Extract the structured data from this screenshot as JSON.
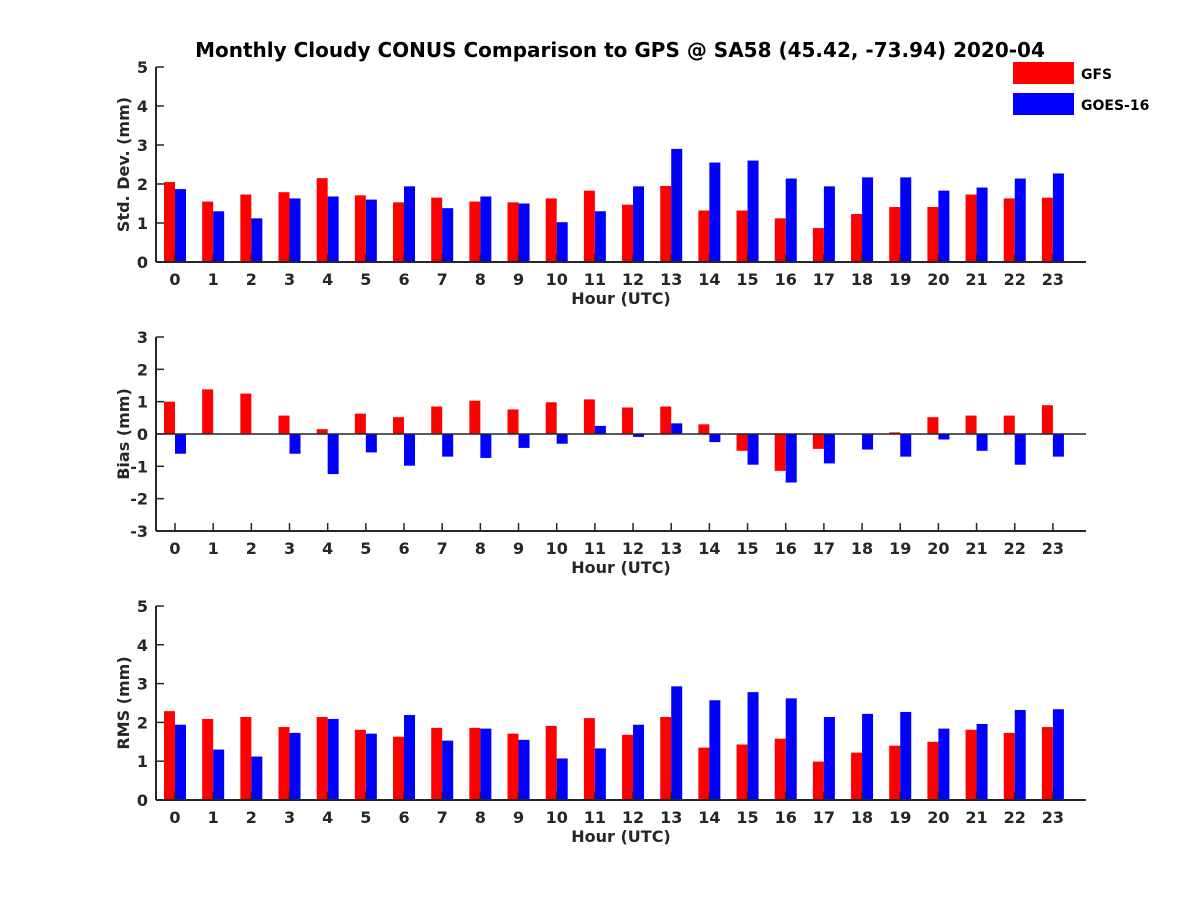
{
  "chart_data": {
    "type": "bar",
    "title": "Monthly Cloudy CONUS Comparison to GPS @ SA58 (45.42, -73.94) 2020-04",
    "legend": {
      "placement": "top-right",
      "entries": [
        {
          "name": "GFS",
          "color": "#ff0000"
        },
        {
          "name": "GOES-16",
          "color": "#0000ff"
        }
      ]
    },
    "panels": [
      {
        "id": "std",
        "ylabel": "Std. Dev. (mm)",
        "xlabel": "Hour (UTC)",
        "ylim": [
          0,
          5
        ],
        "yticks": [
          0,
          1,
          2,
          3,
          4,
          5
        ],
        "categories": [
          "0",
          "1",
          "2",
          "3",
          "4",
          "5",
          "6",
          "7",
          "8",
          "9",
          "10",
          "11",
          "12",
          "13",
          "14",
          "15",
          "16",
          "17",
          "18",
          "19",
          "20",
          "21",
          "22",
          "23"
        ],
        "series": [
          {
            "name": "GFS",
            "color": "#ff0000",
            "values": [
              2.05,
              1.55,
              1.73,
              1.79,
              2.15,
              1.71,
              1.53,
              1.65,
              1.55,
              1.53,
              1.63,
              1.83,
              1.47,
              1.95,
              1.32,
              1.32,
              1.12,
              0.87,
              1.23,
              1.41,
              1.41,
              1.73,
              1.63,
              1.65
            ]
          },
          {
            "name": "GOES-16",
            "color": "#0000ff",
            "values": [
              1.87,
              1.3,
              1.12,
              1.63,
              1.68,
              1.6,
              1.94,
              1.38,
              1.68,
              1.5,
              1.02,
              1.3,
              1.94,
              2.9,
              2.55,
              2.6,
              2.14,
              1.94,
              2.17,
              2.17,
              1.83,
              1.91,
              2.14,
              2.27
            ]
          }
        ]
      },
      {
        "id": "bias",
        "ylabel": "Bias (mm)",
        "xlabel": "Hour (UTC)",
        "ylim": [
          -3,
          3
        ],
        "yticks": [
          -3,
          -2,
          -1,
          0,
          1,
          2,
          3
        ],
        "categories": [
          "0",
          "1",
          "2",
          "3",
          "4",
          "5",
          "6",
          "7",
          "8",
          "9",
          "10",
          "11",
          "12",
          "13",
          "14",
          "15",
          "16",
          "17",
          "18",
          "19",
          "20",
          "21",
          "22",
          "23"
        ],
        "series": [
          {
            "name": "GFS",
            "color": "#ff0000",
            "values": [
              1.0,
              1.38,
              1.25,
              0.57,
              0.15,
              0.63,
              0.52,
              0.85,
              1.03,
              0.76,
              0.98,
              1.07,
              0.82,
              0.85,
              0.3,
              -0.52,
              -1.14,
              -0.46,
              0.0,
              0.05,
              0.52,
              0.57,
              0.57,
              0.89
            ]
          },
          {
            "name": "GOES-16",
            "color": "#0000ff",
            "values": [
              -0.61,
              0.0,
              0.0,
              -0.61,
              -1.24,
              -0.57,
              -0.98,
              -0.7,
              -0.74,
              -0.43,
              -0.3,
              0.25,
              -0.09,
              0.33,
              -0.25,
              -0.95,
              -1.5,
              -0.91,
              -0.48,
              -0.7,
              -0.17,
              -0.52,
              -0.95,
              -0.7
            ]
          }
        ]
      },
      {
        "id": "rms",
        "ylabel": "RMS (mm)",
        "xlabel": "Hour (UTC)",
        "ylim": [
          0,
          5
        ],
        "yticks": [
          0,
          1,
          2,
          3,
          4,
          5
        ],
        "categories": [
          "0",
          "1",
          "2",
          "3",
          "4",
          "5",
          "6",
          "7",
          "8",
          "9",
          "10",
          "11",
          "12",
          "13",
          "14",
          "15",
          "16",
          "17",
          "18",
          "19",
          "20",
          "21",
          "22",
          "23"
        ],
        "series": [
          {
            "name": "GFS",
            "color": "#ff0000",
            "values": [
              2.29,
              2.09,
              2.14,
              1.88,
              2.14,
              1.81,
              1.63,
              1.86,
              1.86,
              1.71,
              1.91,
              2.11,
              1.68,
              2.14,
              1.35,
              1.43,
              1.58,
              0.99,
              1.22,
              1.4,
              1.5,
              1.81,
              1.73,
              1.88
            ]
          },
          {
            "name": "GOES-16",
            "color": "#0000ff",
            "values": [
              1.94,
              1.3,
              1.12,
              1.73,
              2.09,
              1.71,
              2.19,
              1.53,
              1.84,
              1.55,
              1.07,
              1.33,
              1.94,
              2.93,
              2.57,
              2.78,
              2.62,
              2.14,
              2.22,
              2.27,
              1.84,
              1.96,
              2.32,
              2.34
            ]
          }
        ]
      }
    ]
  }
}
